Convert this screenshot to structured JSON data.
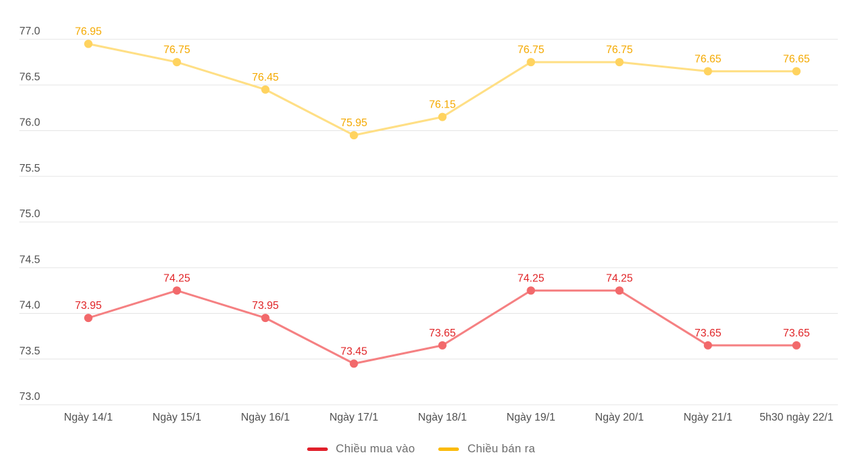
{
  "chart_data": {
    "type": "line",
    "title": "",
    "xlabel": "",
    "ylabel": "",
    "categories": [
      "Ngày 14/1",
      "Ngày 15/1",
      "Ngày 16/1",
      "Ngày 17/1",
      "Ngày 18/1",
      "Ngày 19/1",
      "Ngày 20/1",
      "Ngày 21/1",
      "5h30 ngày 22/1"
    ],
    "series": [
      {
        "name": "Chiều mua vào",
        "values": [
          73.95,
          74.25,
          73.95,
          73.45,
          73.65,
          74.25,
          74.25,
          73.65,
          73.65
        ],
        "line_color": "#f58082",
        "marker_color": "#f2696b",
        "label_color": "#e02427",
        "legend_color": "#e1202b"
      },
      {
        "name": "Chiều bán ra",
        "values": [
          76.95,
          76.75,
          76.45,
          75.95,
          76.15,
          76.75,
          76.75,
          76.65,
          76.65
        ],
        "line_color": "#ffdf85",
        "marker_color": "#ffd35f",
        "label_color": "#f4a900",
        "legend_color": "#fbbb0c"
      }
    ],
    "ylim": [
      73.0,
      77.0
    ],
    "ytick_step": 0.5,
    "ytick_labels": [
      "77.0",
      "76.5",
      "76.0",
      "75.5",
      "75.0",
      "74.5",
      "74.0",
      "73.5",
      "73.0"
    ],
    "grid": true,
    "legend_position": "bottom",
    "colors": {
      "grid": "#e5e5e5",
      "axis_text": "#4f4f4f",
      "legend_text": "#6d6d6d",
      "background": "#ffffff"
    }
  }
}
